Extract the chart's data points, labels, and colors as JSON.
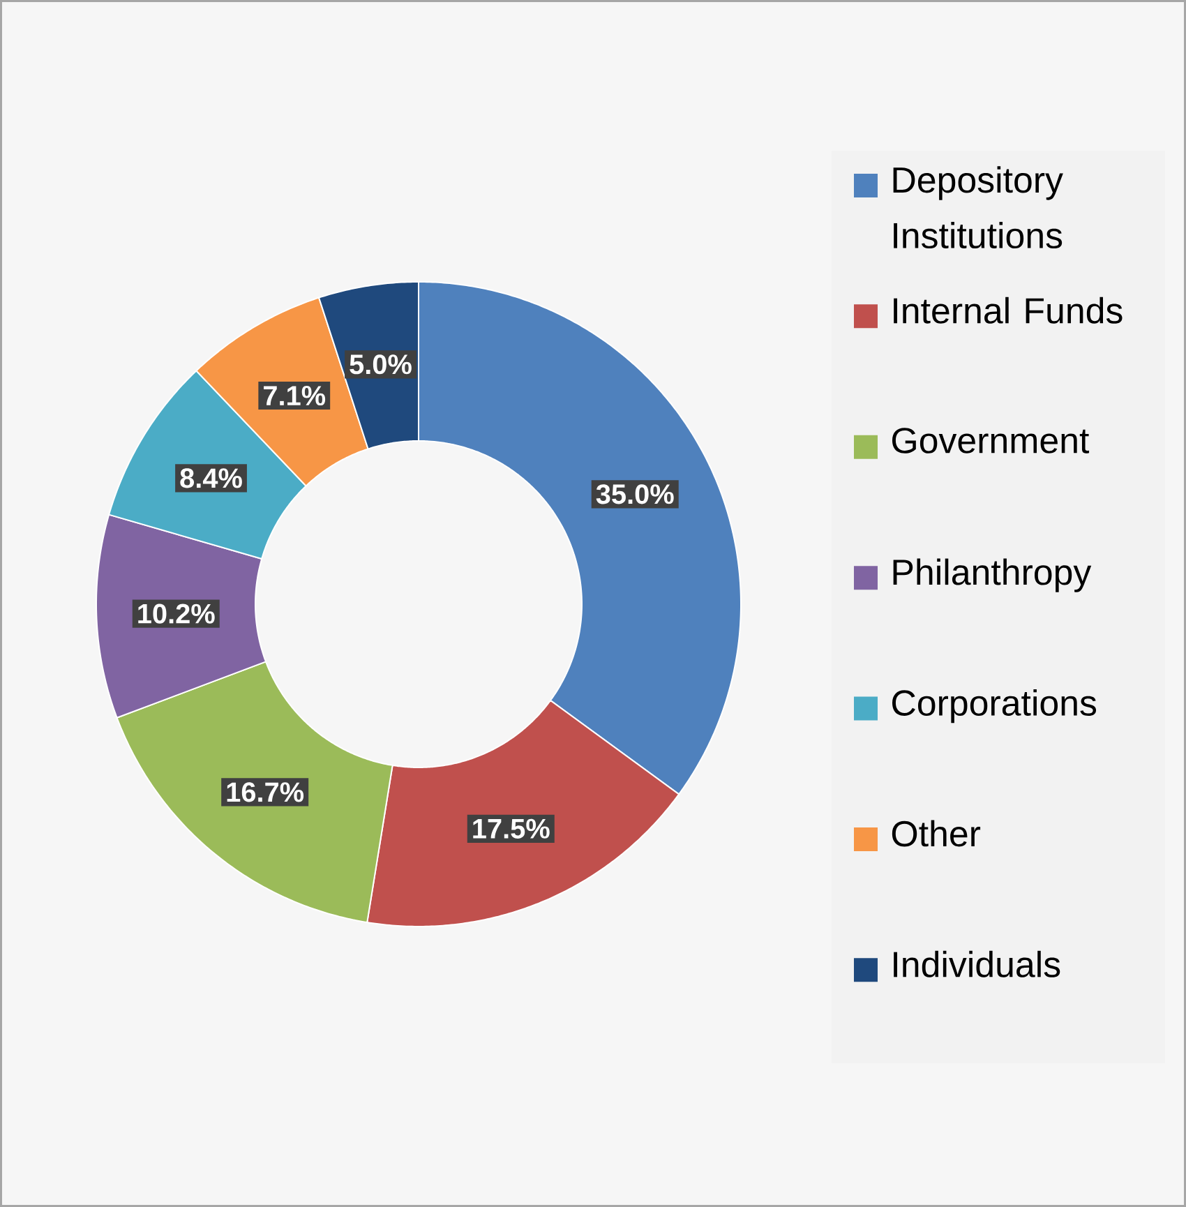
{
  "chart_data": {
    "type": "donut",
    "categories": [
      "Depository Institutions",
      "Internal Funds",
      "Government",
      "Philanthropy",
      "Corporations",
      "Other",
      "Individuals"
    ],
    "values": [
      35.0,
      17.5,
      16.7,
      10.2,
      8.4,
      7.1,
      5.0
    ],
    "colors": [
      "#4f81bd",
      "#c0504d",
      "#9bbb59",
      "#8064a2",
      "#4bacc6",
      "#f79646",
      "#1f497d"
    ],
    "value_labels": [
      "35.0%",
      "17.5%",
      "16.7%",
      "10.2%",
      "8.4%",
      "7.1%",
      "5.0%"
    ],
    "legend": "right"
  }
}
